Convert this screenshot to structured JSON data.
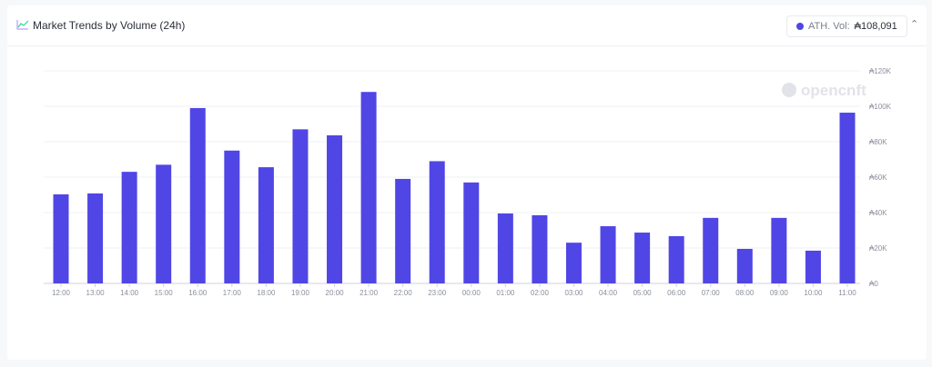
{
  "header": {
    "title": "Market Trends by Volume (24h)",
    "ath_label": "ATH. Vol:",
    "ath_value": "₳108,091",
    "collapse_icon": "chevron-up-icon",
    "chart_icon": "line-chart-icon"
  },
  "watermark": "opencnft",
  "chart_data": {
    "type": "bar",
    "categories": [
      "12:00",
      "13:00",
      "14:00",
      "15:00",
      "16:00",
      "17:00",
      "18:00",
      "19:00",
      "20:00",
      "21:00",
      "22:00",
      "23:00",
      "00:00",
      "01:00",
      "02:00",
      "03:00",
      "04:00",
      "05:00",
      "06:00",
      "07:00",
      "08:00",
      "09:00",
      "10:00",
      "11:00"
    ],
    "values": [
      50300,
      50800,
      63000,
      67000,
      99000,
      75000,
      65600,
      87000,
      83600,
      108091,
      59000,
      69000,
      57000,
      39500,
      38500,
      23000,
      32300,
      28700,
      26700,
      37000,
      19500,
      37000,
      18500,
      96400
    ],
    "yticks": [
      "₳0",
      "₳20K",
      "₳40K",
      "₳60K",
      "₳80K",
      "₳100K",
      "₳120K"
    ],
    "ylim": [
      0,
      120000
    ],
    "yaxis_position": "right",
    "grid": true,
    "color": "#5046e5"
  }
}
